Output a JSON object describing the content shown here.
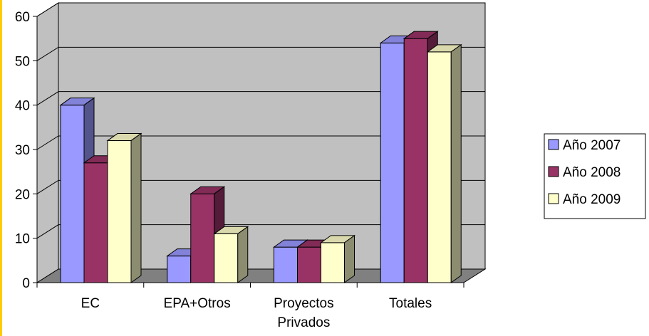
{
  "chart_data": {
    "type": "bar",
    "three_d": true,
    "categories": [
      "EC",
      "EPA+Otros",
      "Proyectos Privados",
      "Totales"
    ],
    "category_label_lines": [
      [
        "EC"
      ],
      [
        "EPA+Otros"
      ],
      [
        "Proyectos",
        "Privados"
      ],
      [
        "Totales"
      ]
    ],
    "series": [
      {
        "name": "Año 2007",
        "values": [
          40,
          6,
          8,
          54
        ],
        "color": "#9999ff"
      },
      {
        "name": "Año 2008",
        "values": [
          27,
          20,
          8,
          55
        ],
        "color": "#993366"
      },
      {
        "name": "Año 2009",
        "values": [
          32,
          11,
          9,
          52
        ],
        "color": "#ffffcc"
      }
    ],
    "y_ticks": [
      "0",
      "10",
      "20",
      "30",
      "40",
      "50",
      "60"
    ],
    "ylim": [
      0,
      60
    ],
    "grid": true,
    "wall_color": "#c0c0c0",
    "floor_color": "#808080",
    "legend_position": "right",
    "title": "",
    "xlabel": "",
    "ylabel": ""
  }
}
